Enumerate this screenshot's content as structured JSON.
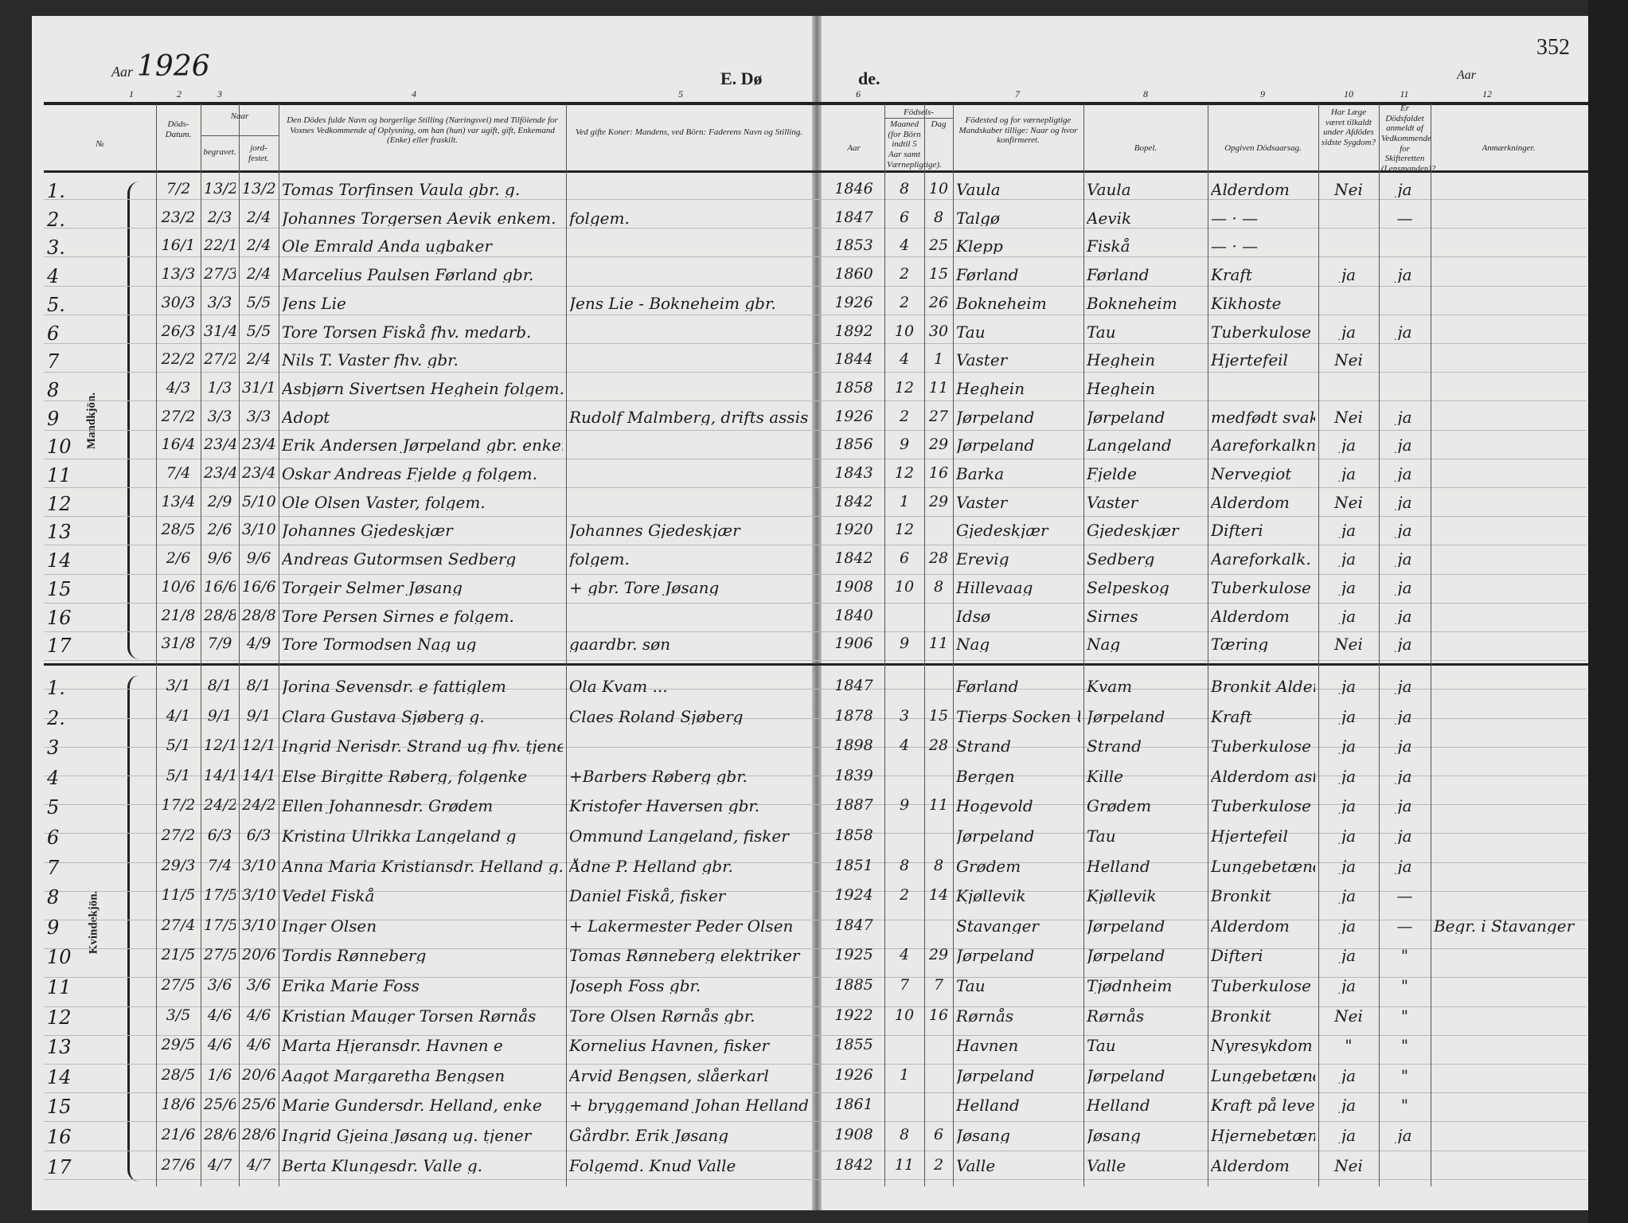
{
  "header": {
    "year_label": "Aar",
    "year": "1926",
    "title_left": "E. Dø",
    "title_right": "de.",
    "page_number": "352",
    "year_label_right": "Aar",
    "column_numbers": [
      "1",
      "2",
      "3",
      "4",
      "5",
      "6",
      "7",
      "8",
      "9",
      "10",
      "11",
      "12"
    ],
    "columns": {
      "no": "№",
      "death_date": "Döds-Datum.",
      "when": "Naar",
      "buried": "begravet.",
      "funeral": "jord-festet.",
      "name": "Den Dödes fulde Navn og borgerlige Stilling (Næringsvei) med Tilföiende for Voxnes Vedkommende af Oplysning, om han (hun) var ugift, gift, Enkemand (Enke) eller fraskilt.",
      "father": "Ved gifte Koner: Mandens, ved Börn: Faderens Navn og Stilling.",
      "birth": "Födsels-",
      "birth_year": "Aar",
      "birth_month_day": "Maaned (for Börn indtil 5 Aar samt Værnepligtige).",
      "birth_day": "Dag",
      "birthplace": "Födested og for værnepligtige Mandskaber tillige: Naar og hvor konfirmeret.",
      "residence": "Bopel.",
      "cause": "Opgiven Dödsaarsag.",
      "doctor": "Har Læge været tilkaldt under Afdödes sidste Sygdom?",
      "probate": "Er Dödsfaldet anmeldt af Vedkommende for Skifteretten (Lensmanden)?",
      "remarks": "Anmærkninger."
    }
  },
  "sections": {
    "male_label": "Mandkjön.",
    "female_label": "Kvindekjön."
  },
  "male_rows": [
    [
      "1.",
      "7/2",
      "13/2",
      "13/2",
      "Tomas Torfinsen Vaula gbr. g.",
      "",
      "1846",
      "8",
      "10",
      "Vaula",
      "Vaula",
      "Alderdom",
      "Nei",
      "ja",
      ""
    ],
    [
      "2.",
      "23/2",
      "2/3",
      "2/4",
      "Johannes Torgersen Aevik enkem.",
      "folgem.",
      "1847",
      "6",
      "8",
      "Talgø",
      "Aevik",
      "— · —",
      "",
      "—",
      ""
    ],
    [
      "3.",
      "16/1",
      "22/1",
      "2/4",
      "Ole Emrald Anda ugbaker",
      "",
      "1853",
      "4",
      "25",
      "Klepp",
      "Fiskå",
      "— · —",
      "",
      "",
      ""
    ],
    [
      "4",
      "13/3",
      "27/3",
      "2/4",
      "Marcelius Paulsen Førland gbr.",
      "",
      "1860",
      "2",
      "15",
      "Førland",
      "Førland",
      "Kraft",
      "ja",
      "ja",
      ""
    ],
    [
      "5.",
      "30/3",
      "3/3",
      "5/5",
      "Jens Lie",
      "Jens Lie - Bokneheim gbr.",
      "1926",
      "2",
      "26",
      "Bokneheim",
      "Bokneheim",
      "Kikhoste",
      "",
      "",
      ""
    ],
    [
      "6",
      "26/3",
      "31/4",
      "5/5",
      "Tore Torsen Fiskå fhv. medarb.",
      "",
      "1892",
      "10",
      "30",
      "Tau",
      "Tau",
      "Tuberkulose",
      "ja",
      "ja",
      ""
    ],
    [
      "7",
      "22/2",
      "27/2",
      "2/4",
      "Nils T. Vaster fhv. gbr.",
      "",
      "1844",
      "4",
      "1",
      "Vaster",
      "Heghein",
      "Hjertefeil",
      "Nei",
      "",
      ""
    ],
    [
      "8",
      "4/3",
      "1/3",
      "31/10",
      "Asbjørn Sivertsen Heghein folgem.",
      "",
      "1858",
      "12",
      "11",
      "Heghein",
      "Heghein",
      "",
      "",
      "",
      ""
    ],
    [
      "9",
      "27/2",
      "3/3",
      "3/3",
      "Adopt",
      "Rudolf Malmberg, drifts assistent",
      "1926",
      "2",
      "27",
      "Jørpeland",
      "Jørpeland",
      "medfødt svakhet",
      "Nei",
      "ja",
      ""
    ],
    [
      "10",
      "16/4",
      "23/4",
      "23/4",
      "Erik Andersen Jørpeland gbr. enkem.",
      "",
      "1856",
      "9",
      "29",
      "Jørpeland",
      "Langeland",
      "Aareforkalkning",
      "ja",
      "ja",
      ""
    ],
    [
      "11",
      "7/4",
      "23/4",
      "23/4",
      "Oskar Andreas Fjelde g folgem.",
      "",
      "1843",
      "12",
      "16",
      "Barka",
      "Fjelde",
      "Nervegiot",
      "ja",
      "ja",
      ""
    ],
    [
      "12",
      "13/4",
      "2/9",
      "5/10",
      "Ole Olsen Vaster, folgem.",
      "",
      "1842",
      "1",
      "29",
      "Vaster",
      "Vaster",
      "Alderdom",
      "Nei",
      "ja",
      ""
    ],
    [
      "13",
      "28/5",
      "2/6",
      "3/10",
      "Johannes Gjedeskjær",
      "Johannes Gjedeskjær",
      "1920",
      "12",
      "",
      "Gjedeskjær",
      "Gjedeskjær",
      "Difteri",
      "ja",
      "ja",
      ""
    ],
    [
      "14",
      "2/6",
      "9/6",
      "9/6",
      "Andreas Gutormsen Sedberg",
      "folgem.",
      "1842",
      "6",
      "28",
      "Erevig",
      "Sedberg",
      "Aareforkalk.",
      "ja",
      "ja",
      ""
    ],
    [
      "15",
      "10/6",
      "16/6",
      "16/6",
      "Torgeir Selmer Jøsang",
      "+ gbr. Tore Jøsang",
      "1908",
      "10",
      "8",
      "Hillevaag",
      "Selpeskog",
      "Tuberkulose",
      "ja",
      "ja",
      ""
    ],
    [
      "16",
      "21/8",
      "28/8",
      "28/8",
      "Tore Persen Sirnes e folgem.",
      "",
      "1840",
      "",
      "",
      "Idsø",
      "Sirnes",
      "Alderdom",
      "ja",
      "ja",
      ""
    ],
    [
      "17",
      "31/8",
      "7/9",
      "4/9",
      "Tore Tormodsen Nag ug",
      "gaardbr. søn",
      "1906",
      "9",
      "11",
      "Nag",
      "Nag",
      "Tæring",
      "Nei",
      "ja",
      ""
    ]
  ],
  "female_rows": [
    [
      "1.",
      "3/1",
      "8/1",
      "8/1",
      "Jorina Sevensdr. e fattiglem",
      "Ola Kvam ...",
      "1847",
      "",
      "",
      "Førland",
      "Kvam",
      "Bronkit Alderdom",
      "ja",
      "ja",
      ""
    ],
    [
      "2.",
      "4/1",
      "9/1",
      "9/1",
      "Clara Gustava Sjøberg g.",
      "Claes Roland Sjøberg",
      "1878",
      "3",
      "15",
      "Tierps Socken Upsala Län",
      "Jørpeland",
      "Kraft",
      "ja",
      "ja",
      ""
    ],
    [
      "3",
      "5/1",
      "12/1",
      "12/1",
      "Ingrid Nerisdr. Strand ug fhv. tjenestepike",
      "",
      "1898",
      "4",
      "28",
      "Strand",
      "Strand",
      "Tuberkulose",
      "ja",
      "ja",
      ""
    ],
    [
      "4",
      "5/1",
      "14/1",
      "14/1",
      "Else Birgitte Røberg, folgenke",
      "+Barbers Røberg gbr.",
      "1839",
      "",
      "",
      "Bergen",
      "Kille",
      "Alderdom astma",
      "ja",
      "ja",
      ""
    ],
    [
      "5",
      "17/2",
      "24/2",
      "24/2",
      "Ellen Johannesdr. Grødem",
      "Kristofer Haversen gbr.",
      "1887",
      "9",
      "11",
      "Hogevold",
      "Grødem",
      "Tuberkulose",
      "ja",
      "ja",
      ""
    ],
    [
      "6",
      "27/2",
      "6/3",
      "6/3",
      "Kristina Ulrikka Langeland g",
      "Ommund Langeland, fisker",
      "1858",
      "",
      "",
      "Jørpeland",
      "Tau",
      "Hjertefeil",
      "ja",
      "ja",
      ""
    ],
    [
      "7",
      "29/3",
      "7/4",
      "3/10",
      "Anna Maria Kristiansdr. Helland g.",
      "Ådne P. Helland gbr.",
      "1851",
      "8",
      "8",
      "Grødem",
      "Helland",
      "Lungebetændelse",
      "ja",
      "ja",
      ""
    ],
    [
      "8",
      "11/5",
      "17/5",
      "3/10",
      "Vedel Fiskå",
      "Daniel Fiskå, fisker",
      "1924",
      "2",
      "14",
      "Kjøllevik",
      "Kjøllevik",
      "Bronkit",
      "ja",
      "—",
      ""
    ],
    [
      "9",
      "27/4",
      "17/5",
      "3/10",
      "Inger Olsen",
      "+ Lakermester Peder Olsen",
      "1847",
      "",
      "",
      "Stavanger",
      "Jørpeland",
      "Alderdom",
      "ja",
      "—",
      "Begr. i Stavanger"
    ],
    [
      "10",
      "21/5",
      "27/5",
      "20/6",
      "Tordis Rønneberg",
      "Tomas Rønneberg elektriker",
      "1925",
      "4",
      "29",
      "Jørpeland",
      "Jørpeland",
      "Difteri",
      "ja",
      "\"",
      ""
    ],
    [
      "11",
      "27/5",
      "3/6",
      "3/6",
      "Erika Marie Foss",
      "Joseph Foss gbr.",
      "1885",
      "7",
      "7",
      "Tau",
      "Tjødnheim",
      "Tuberkulose",
      "ja",
      "\"",
      ""
    ],
    [
      "12",
      "3/5",
      "4/6",
      "4/6",
      "Kristian Mauger Torsen Rørnås",
      "Tore Olsen Rørnås gbr.",
      "1922",
      "10",
      "16",
      "Rørnås",
      "Rørnås",
      "Bronkit",
      "Nei",
      "\"",
      ""
    ],
    [
      "13",
      "29/5",
      "4/6",
      "4/6",
      "Marta Hjeransdr. Havnen e",
      "Kornelius Havnen, fisker",
      "1855",
      "",
      "",
      "Havnen",
      "Tau",
      "Nyresykdom",
      "\"",
      "\"",
      ""
    ],
    [
      "14",
      "28/5",
      "1/6",
      "20/6",
      "Aagot Margaretha Bengsen",
      "Arvid Bengsen, slåerkarl",
      "1926",
      "1",
      "",
      "Jørpeland",
      "Jørpeland",
      "Lungebetændelse",
      "ja",
      "\"",
      ""
    ],
    [
      "15",
      "18/6",
      "25/6",
      "25/6",
      "Marie Gundersdr. Helland, enke",
      "+ bryggemand Johan Helland",
      "1861",
      "",
      "",
      "Helland",
      "Helland",
      "Kraft på leveren",
      "ja",
      "\"",
      ""
    ],
    [
      "16",
      "21/6",
      "28/6",
      "28/6",
      "Ingrid Gjeina Jøsang ug. tjener",
      "Gårdbr. Erik Jøsang",
      "1908",
      "8",
      "6",
      "Jøsang",
      "Jøsang",
      "Hjernebetændelse",
      "ja",
      "ja",
      ""
    ],
    [
      "17",
      "27/6",
      "4/7",
      "4/7",
      "Berta Klungesdr. Valle g.",
      "Folgemd. Knud Valle",
      "1842",
      "11",
      "2",
      "Valle",
      "Valle",
      "Alderdom",
      "Nei",
      "",
      ""
    ]
  ]
}
